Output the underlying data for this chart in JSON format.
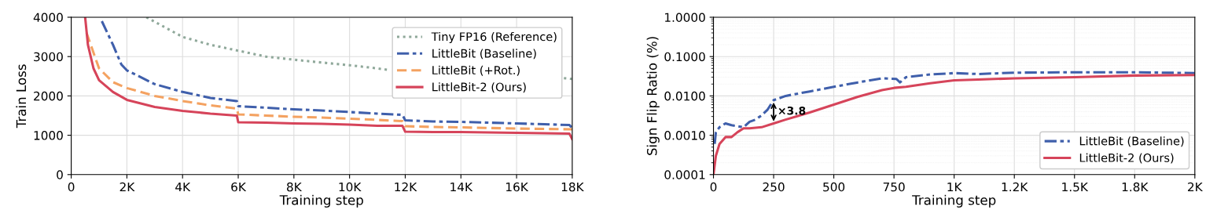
{
  "chart_data": [
    {
      "type": "line",
      "xlabel": "Training step",
      "ylabel": "Train Loss",
      "xlim": [
        0,
        18000
      ],
      "ylim": [
        0,
        4000
      ],
      "xticks": [
        0,
        {
          "value": 2000,
          "label": "2K"
        },
        {
          "value": 4000,
          "label": "4K"
        },
        {
          "value": 6000,
          "label": "6K"
        },
        {
          "value": 8000,
          "label": "8K"
        },
        {
          "value": 10000,
          "label": "10K"
        },
        {
          "value": 12000,
          "label": "12K"
        },
        {
          "value": 14000,
          "label": "14K"
        },
        {
          "value": 16000,
          "label": "16K"
        },
        {
          "value": 18000,
          "label": "18K"
        }
      ],
      "yticks": [
        0,
        1000,
        2000,
        3000,
        4000
      ],
      "grid": true,
      "legend": "top right",
      "series": [
        {
          "name": "Tiny FP16 (Reference)",
          "color": "#8fa89a",
          "line_style": "dotted",
          "x": [
            2700,
            4000,
            5000,
            6000,
            7000,
            8000,
            9000,
            10000,
            11000,
            11400,
            12000,
            14000,
            16000,
            17700,
            18000
          ],
          "values": [
            4000,
            3500,
            3300,
            3150,
            3000,
            2920,
            2850,
            2780,
            2700,
            2660,
            null,
            null,
            null,
            2450,
            2430
          ]
        },
        {
          "name": "LittleBit (Baseline)",
          "color": "#3f5fab",
          "line_style": "dashdot",
          "x": [
            1100,
            1500,
            1800,
            2000,
            3000,
            4000,
            5000,
            5950,
            6000,
            7000,
            8000,
            9000,
            10000,
            11000,
            11900,
            12000,
            13000,
            14000,
            15000,
            16000,
            17000,
            17900,
            18000
          ],
          "values": [
            3900,
            3300,
            2800,
            2650,
            2300,
            2100,
            1950,
            1870,
            1740,
            1700,
            1660,
            1630,
            1590,
            1550,
            1520,
            1380,
            1350,
            1340,
            1320,
            1300,
            1280,
            1260,
            1180
          ]
        },
        {
          "name": "LittleBit (+Rot.)",
          "color": "#f4a261",
          "line_style": "dashed",
          "x": [
            550,
            1000,
            1500,
            2000,
            3000,
            4000,
            5000,
            5950,
            6000,
            7000,
            8000,
            9000,
            10000,
            11000,
            11900,
            12000,
            13000,
            14000,
            16000,
            18000
          ],
          "values": [
            3600,
            2700,
            2350,
            2200,
            2000,
            1870,
            1760,
            1680,
            1530,
            1500,
            1470,
            1450,
            1420,
            1390,
            1360,
            1230,
            1210,
            1200,
            1170,
            1150
          ]
        },
        {
          "name": "LittleBit-2 (Ours)",
          "color": "#d6445a",
          "line_style": "solid",
          "x": [
            500,
            600,
            800,
            1000,
            1500,
            2000,
            3000,
            4000,
            5000,
            5950,
            6000,
            7000,
            8000,
            9000,
            10000,
            11000,
            11900,
            12000,
            13000,
            14000,
            16000,
            17000,
            17900,
            18000
          ],
          "values": [
            4000,
            3300,
            2700,
            2400,
            2100,
            1900,
            1720,
            1620,
            1550,
            1500,
            1330,
            1320,
            1300,
            1290,
            1270,
            1240,
            1240,
            1090,
            1080,
            1080,
            1060,
            1050,
            1040,
            900
          ]
        }
      ]
    },
    {
      "type": "line",
      "xlabel": "Training step",
      "ylabel": "Sign Flip Ratio (%)",
      "log": "y",
      "xlim": [
        0,
        2000
      ],
      "ylim": [
        0.0001,
        1
      ],
      "xticks": [
        0,
        250,
        500,
        750,
        {
          "value": 1000,
          "label": "1K"
        },
        {
          "value": 1250,
          "label": "1.2K"
        },
        {
          "value": 1500,
          "label": "1.5K"
        },
        {
          "value": 1750,
          "label": "1.8K"
        },
        {
          "value": 2000,
          "label": "2K"
        }
      ],
      "yticks": [
        {
          "value": 0.0001,
          "label": "0.0001"
        },
        {
          "value": 0.001,
          "label": "0.0010"
        },
        {
          "value": 0.01,
          "label": "0.0100"
        },
        {
          "value": 0.1,
          "label": "0.1000"
        },
        {
          "value": 1,
          "label": "1.0000"
        }
      ],
      "grid": true,
      "legend": "lower right",
      "annotations": [
        "×3.8"
      ],
      "series": [
        {
          "name": "LittleBit (Baseline)",
          "color": "#3f5fab",
          "line_style": "dashdot",
          "x": [
            5,
            10,
            25,
            50,
            75,
            100,
            125,
            150,
            175,
            200,
            225,
            250,
            300,
            400,
            500,
            600,
            700,
            760,
            775,
            800,
            900,
            1000,
            1100,
            1250,
            1500,
            1750,
            2000
          ],
          "values": [
            0.0006,
            0.0012,
            0.0016,
            0.002,
            0.0018,
            0.0017,
            0.0016,
            0.0022,
            0.0025,
            0.0032,
            0.0045,
            0.0078,
            0.01,
            0.013,
            0.017,
            0.022,
            0.028,
            0.027,
            0.022,
            0.03,
            0.035,
            0.038,
            0.036,
            0.039,
            0.04,
            0.04,
            0.038
          ]
        },
        {
          "name": "LittleBit-2 (Ours)",
          "color": "#d6445a",
          "line_style": "solid",
          "x": [
            0,
            10,
            25,
            50,
            75,
            100,
            125,
            150,
            200,
            250,
            300,
            400,
            500,
            600,
            700,
            750,
            800,
            900,
            1000,
            1100,
            1250,
            1500,
            1750,
            2000
          ],
          "values": [
            0.0001,
            0.0003,
            0.0006,
            0.0009,
            0.0009,
            0.0012,
            0.0015,
            0.0015,
            0.0016,
            0.002,
            0.0025,
            0.0038,
            0.006,
            0.0095,
            0.014,
            0.016,
            0.017,
            0.021,
            0.025,
            0.026,
            0.028,
            0.03,
            0.033,
            0.034
          ]
        }
      ]
    }
  ]
}
